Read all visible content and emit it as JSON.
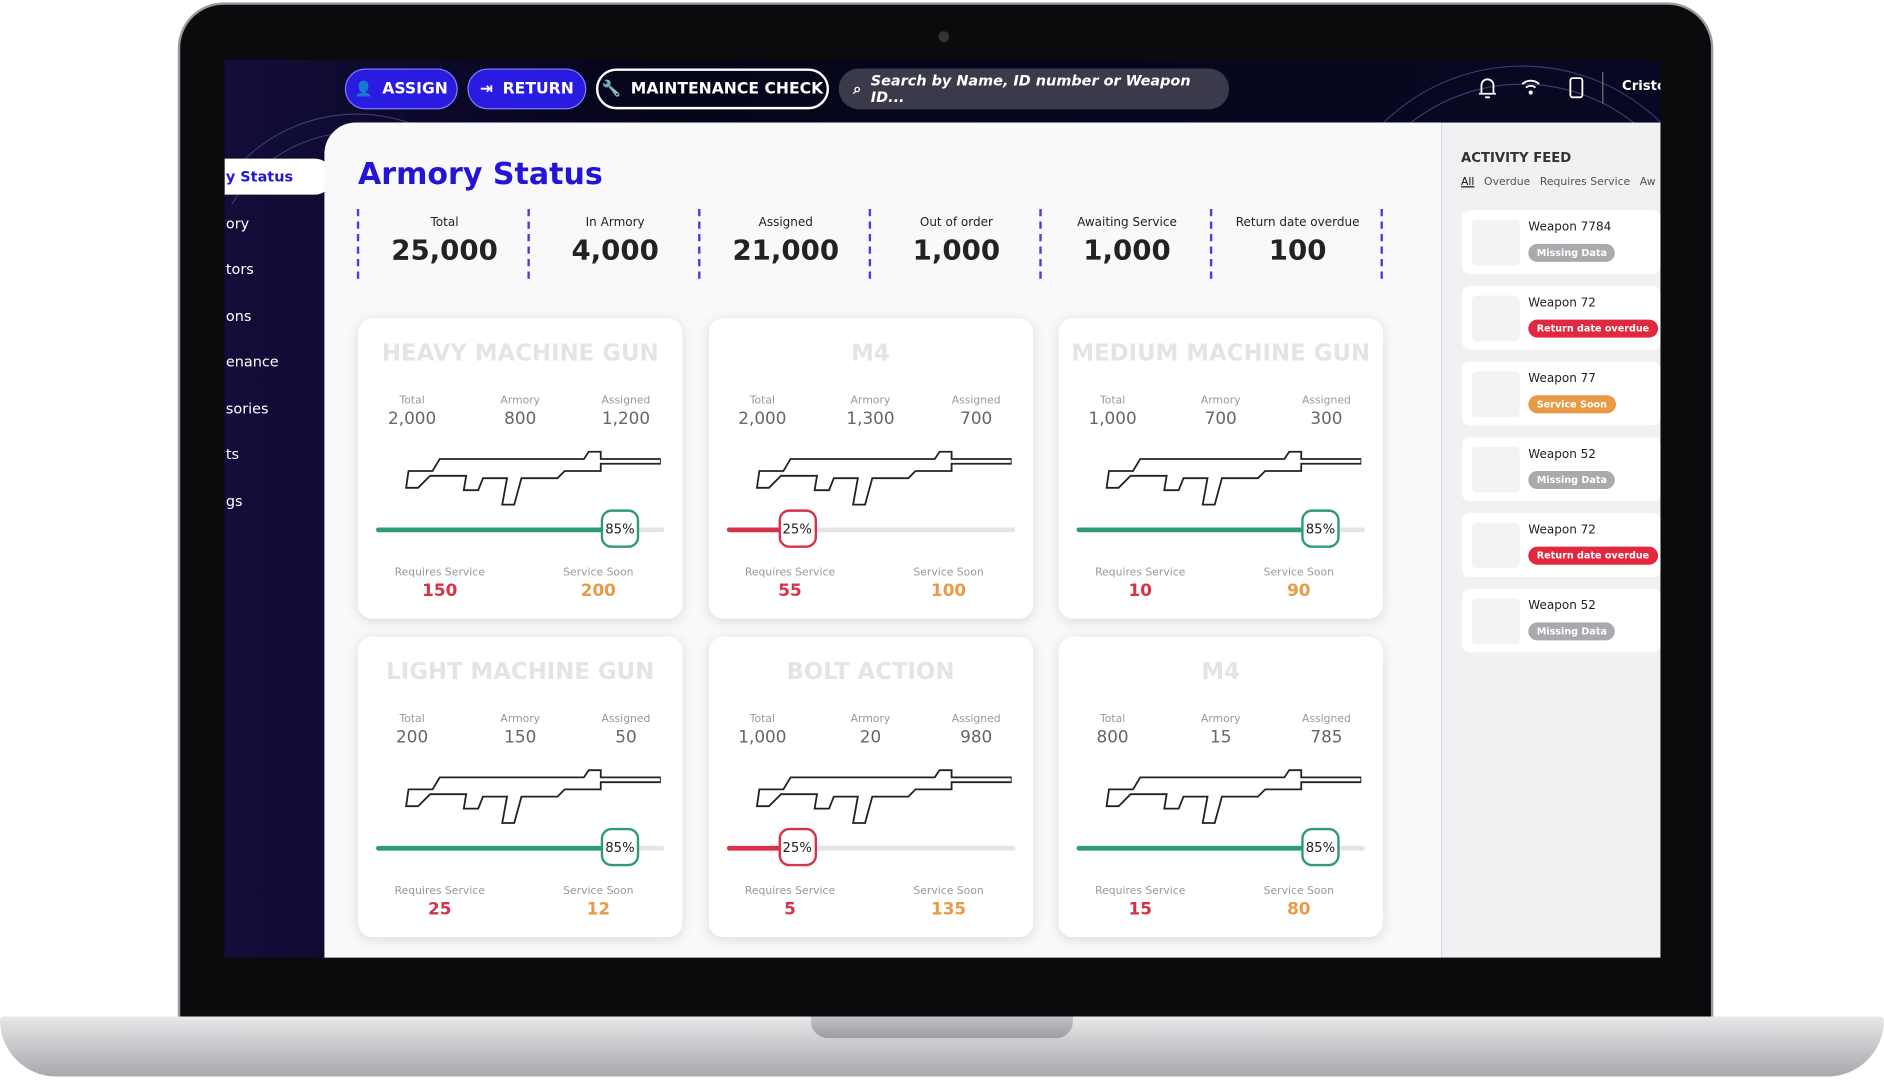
{
  "toolbar": {
    "buttons": [
      "ASSIGN",
      "RETURN",
      "MAINTENANCE CHECK"
    ],
    "search_placeholder": "Search by Name, ID number or Weapon ID...",
    "user": "Cristof"
  },
  "sidebar": {
    "items": [
      "y Status",
      "ory",
      "tors",
      "ons",
      "enance",
      "sories",
      "ts",
      "gs"
    ]
  },
  "page_title": "Armory Status",
  "stats": [
    {
      "label": "Total",
      "value": "25,000"
    },
    {
      "label": "In Armory",
      "value": "4,000"
    },
    {
      "label": "Assigned",
      "value": "21,000"
    },
    {
      "label": "Out of order",
      "value": "1,000"
    },
    {
      "label": "Awaiting Service",
      "value": "1,000"
    },
    {
      "label": "Return date overdue",
      "value": "100"
    }
  ],
  "card_labels": {
    "total": "Total",
    "armory": "Armory",
    "assigned": "Assigned",
    "requires_service": "Requires Service",
    "service_soon": "Service Soon"
  },
  "cards": [
    {
      "title": "HEAVY MACHINE GUN",
      "total": "2,000",
      "armory": "800",
      "assigned": "1,200",
      "percent": 85,
      "percent_label": "85%",
      "bar_color": "#2f9a78",
      "requires_service": "150",
      "service_soon": "200"
    },
    {
      "title": "M4",
      "total": "2,000",
      "armory": "1,300",
      "assigned": "700",
      "percent": 25,
      "percent_label": "25%",
      "bar_color": "#d8324a",
      "requires_service": "55",
      "service_soon": "100"
    },
    {
      "title": "MEDIUM MACHINE GUN",
      "total": "1,000",
      "armory": "700",
      "assigned": "300",
      "percent": 85,
      "percent_label": "85%",
      "bar_color": "#2f9a78",
      "requires_service": "10",
      "service_soon": "90"
    },
    {
      "title": "LIGHT MACHINE GUN",
      "total": "200",
      "armory": "150",
      "assigned": "50",
      "percent": 85,
      "percent_label": "85%",
      "bar_color": "#2f9a78",
      "requires_service": "25",
      "service_soon": "12"
    },
    {
      "title": "BOLT ACTION",
      "total": "1,000",
      "armory": "20",
      "assigned": "980",
      "percent": 25,
      "percent_label": "25%",
      "bar_color": "#d8324a",
      "requires_service": "5",
      "service_soon": "135"
    },
    {
      "title": "M4",
      "total": "800",
      "armory": "15",
      "assigned": "785",
      "percent": 85,
      "percent_label": "85%",
      "bar_color": "#2f9a78",
      "requires_service": "15",
      "service_soon": "80"
    }
  ],
  "activity_feed": {
    "title": "ACTIVITY FEED",
    "tabs": [
      "All",
      "Overdue",
      "Requires Service",
      "Aw"
    ],
    "items": [
      {
        "name": "Weapon 7784",
        "status": "Missing Data",
        "color": "#a9a9ae"
      },
      {
        "name": "Weapon 72",
        "status": "Return date overdue",
        "color": "#e0283f"
      },
      {
        "name": "Weapon 77",
        "status": "Service Soon",
        "color": "#e99a45"
      },
      {
        "name": "Weapon 52",
        "status": "Missing Data",
        "color": "#a9a9ae"
      },
      {
        "name": "Weapon 72",
        "status": "Return date overdue",
        "color": "#e0283f"
      },
      {
        "name": "Weapon 52",
        "status": "Missing Data",
        "color": "#a9a9ae"
      }
    ]
  }
}
